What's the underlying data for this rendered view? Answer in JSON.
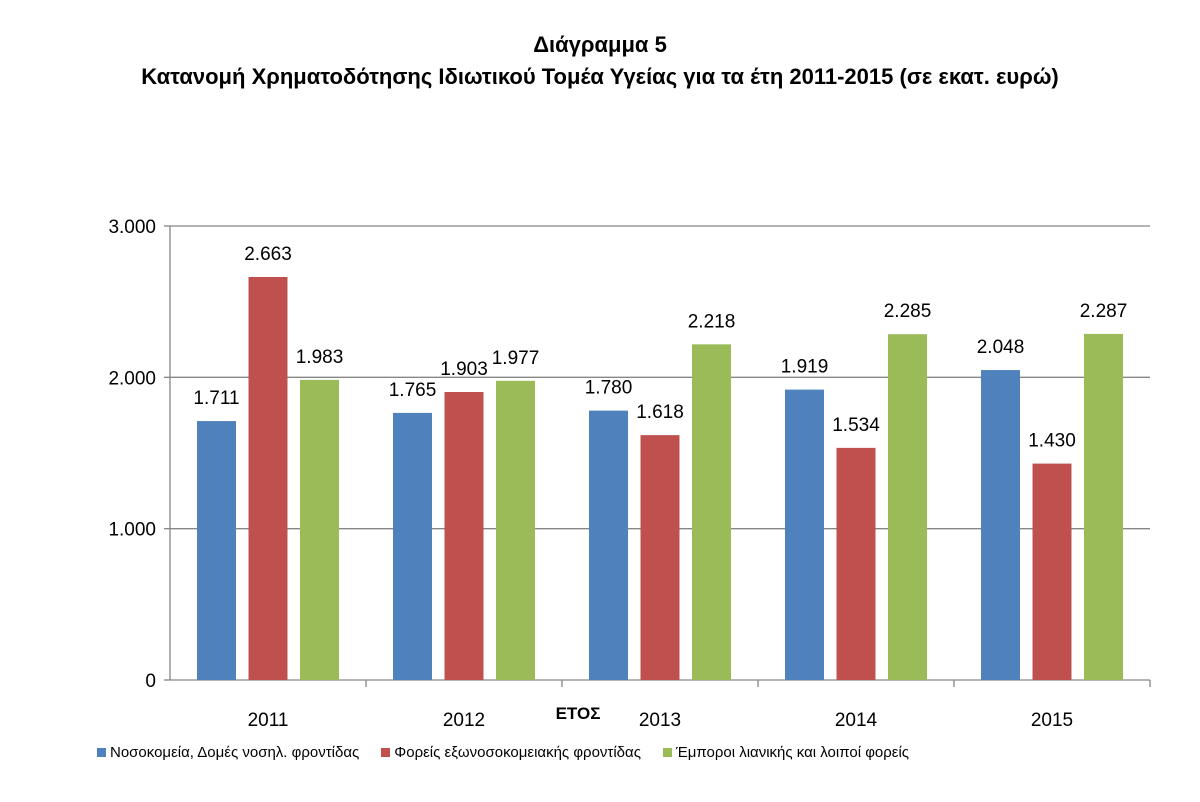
{
  "chart_data": {
    "type": "bar",
    "title": "Διάγραμμα 5",
    "subtitle": "Κατανομή Χρηματοδότησης Ιδιωτικού Τομέα Υγείας για τα έτη 2011-2015 (σε εκατ. ευρώ)",
    "xlabel": "ΕΤΟΣ",
    "ylabel": "",
    "categories": [
      "2011",
      "2012",
      "2013",
      "2014",
      "2015"
    ],
    "ylim": [
      0,
      3000
    ],
    "yticks": [
      0,
      1000,
      2000,
      3000
    ],
    "ytick_labels": [
      "0",
      "1.000",
      "2.000",
      "3.000"
    ],
    "grid": true,
    "legend_position": "bottom",
    "series": [
      {
        "name": "Νοσοκομεία, Δομές νοσηλ. φροντίδας",
        "color": "#4f81bd",
        "values": [
          1711,
          1765,
          1780,
          1919,
          2048
        ],
        "labels": [
          "1.711",
          "1.765",
          "1.780",
          "1.919",
          "2.048"
        ]
      },
      {
        "name": "Φορείς εξωνοσοκομειακής φροντίδας",
        "color": "#c0504d",
        "values": [
          2663,
          1903,
          1618,
          1534,
          1430
        ],
        "labels": [
          "2.663",
          "1.903",
          "1.618",
          "1.534",
          "1.430"
        ]
      },
      {
        "name": "Έμποροι λιανικής και λοιποί φορείς",
        "color": "#9bbb59",
        "values": [
          1983,
          1977,
          2218,
          2285,
          2287
        ],
        "labels": [
          "1.983",
          "1.977",
          "2.218",
          "2.285",
          "2.287"
        ]
      }
    ]
  }
}
